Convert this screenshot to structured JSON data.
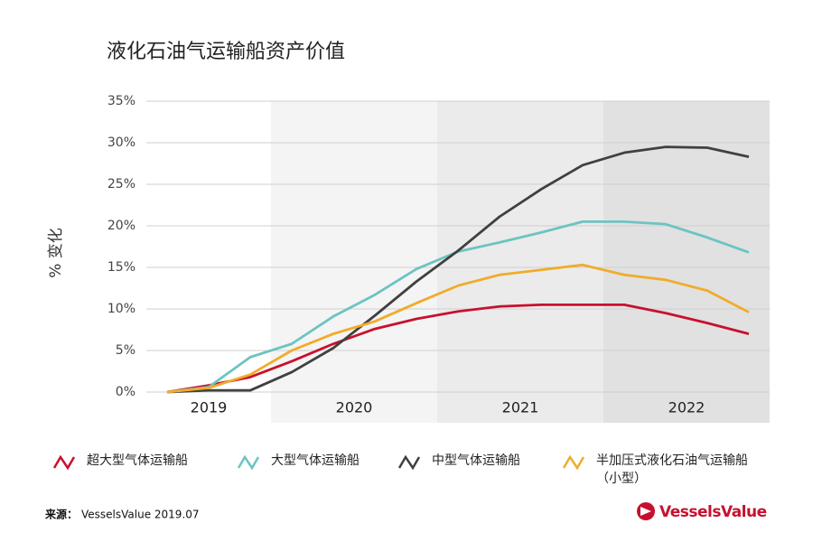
{
  "chart_data": {
    "type": "line",
    "title": "液化石油气运输船资产价值",
    "y_label": "% 变化",
    "categories": [
      null,
      null,
      null,
      null,
      null,
      null,
      null,
      null,
      null,
      null,
      null,
      null,
      null,
      null,
      null
    ],
    "x_groups": [
      {
        "label": "2019",
        "span": 3,
        "color": "#ffffff"
      },
      {
        "label": "2020",
        "span": 4,
        "color": "#f4f4f4"
      },
      {
        "label": "2021",
        "span": 4,
        "color": "#ebebeb"
      },
      {
        "label": "2022",
        "span": 4,
        "color": "#e1e1e1"
      }
    ],
    "ylim": [
      0,
      35
    ],
    "yticks": [
      {
        "value": 0,
        "label": "0%"
      },
      {
        "value": 5,
        "label": "5%"
      },
      {
        "value": 10,
        "label": "10%"
      },
      {
        "value": 15,
        "label": "15%"
      },
      {
        "value": 20,
        "label": "20%"
      },
      {
        "value": 25,
        "label": "25%"
      },
      {
        "value": 30,
        "label": "30%"
      },
      {
        "value": 35,
        "label": "35%"
      }
    ],
    "grid": true,
    "series": [
      {
        "name": "超大型气体运输船",
        "color": "#c8102e",
        "values": [
          0,
          0.8,
          1.8,
          3.7,
          5.8,
          7.6,
          8.8,
          9.7,
          10.3,
          10.5,
          10.5,
          10.5,
          9.5,
          8.3,
          7.0
        ]
      },
      {
        "name": "大型气体运输船",
        "color": "#6cc4c1",
        "values": [
          0,
          0.6,
          4.2,
          5.8,
          9.1,
          11.7,
          14.8,
          16.9,
          18.0,
          19.2,
          20.5,
          20.5,
          20.2,
          18.6,
          16.8
        ]
      },
      {
        "name": "中型气体运输船",
        "color": "#404040",
        "values": [
          0,
          0.2,
          0.2,
          2.4,
          5.3,
          9.2,
          13.3,
          17.0,
          21.1,
          24.4,
          27.3,
          28.8,
          29.5,
          29.4,
          28.3
        ]
      },
      {
        "name": "半加压式液化石油气运输船\n（小型）",
        "color": "#f0ac2a",
        "values": [
          0,
          0.5,
          2.1,
          5.0,
          7.0,
          8.5,
          10.7,
          12.8,
          14.1,
          14.7,
          15.3,
          14.1,
          13.5,
          12.2,
          9.6
        ]
      }
    ],
    "source_label": "来源：",
    "source_text": "VesselsValue 2019.07",
    "logo": "VesselsValue"
  }
}
